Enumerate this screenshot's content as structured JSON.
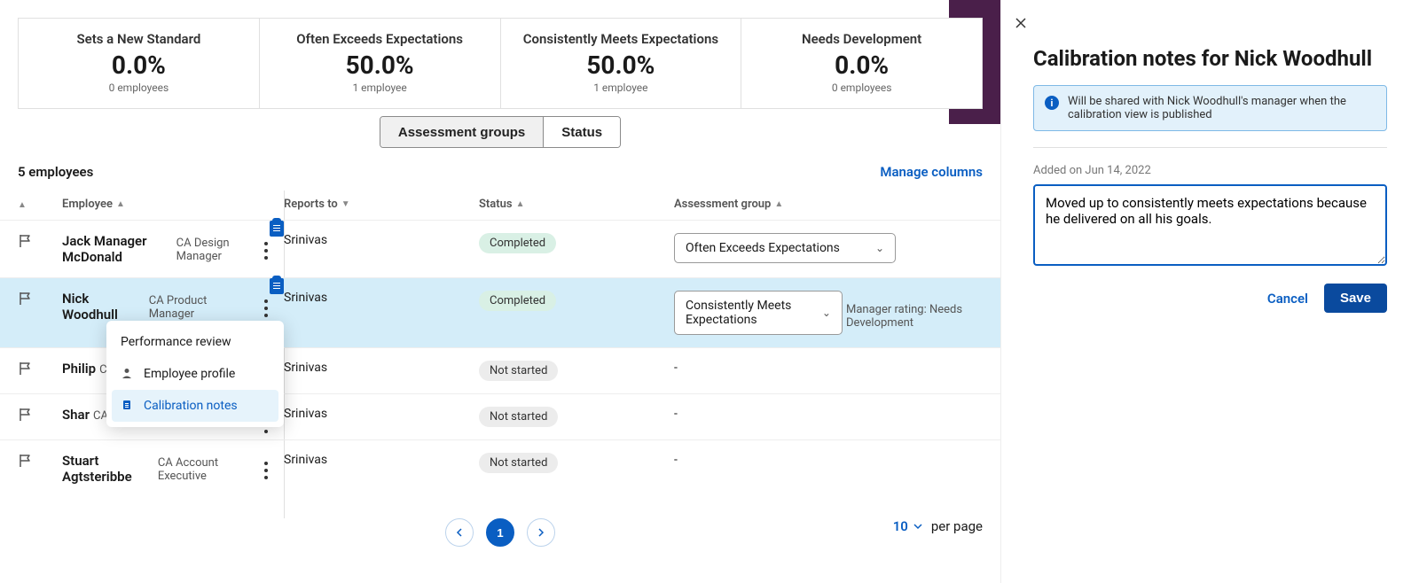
{
  "summary": [
    {
      "title": "Sets a New Standard",
      "pct": "0.0%",
      "count": "0 employees"
    },
    {
      "title": "Often Exceeds Expectations",
      "pct": "50.0%",
      "count": "1 employee"
    },
    {
      "title": "Consistently Meets Expectations",
      "pct": "50.0%",
      "count": "1 employee"
    },
    {
      "title": "Needs Development",
      "pct": "0.0%",
      "count": "0 employees"
    }
  ],
  "tabs": {
    "assessment": "Assessment groups",
    "status": "Status"
  },
  "emp_count": "5 employees",
  "manage_columns": "Manage columns",
  "columns": {
    "employee": "Employee",
    "reports_to": "Reports to",
    "status": "Status",
    "group": "Assessment group"
  },
  "rows": [
    {
      "name": "Jack Manager McDonald",
      "role": "CA Design Manager",
      "reports_to": "Srinivas",
      "status_label": "Completed",
      "status_class": "status-completed",
      "group": "Often Exceeds Expectations",
      "has_clip": true,
      "highlight": false,
      "mgr_note": "",
      "dash": false
    },
    {
      "name": "Nick Woodhull",
      "role": "CA Product Manager",
      "reports_to": "Srinivas",
      "status_label": "Completed",
      "status_class": "status-completed",
      "group": "Consistently Meets Expectations",
      "has_clip": true,
      "highlight": true,
      "mgr_note": "Manager rating: Needs Development",
      "dash": false
    },
    {
      "name": "Philip",
      "role": "CA P",
      "reports_to": "Srinivas",
      "status_label": "Not started",
      "status_class": "status-notstarted",
      "group": "-",
      "has_clip": false,
      "highlight": false,
      "mgr_note": "",
      "dash": true
    },
    {
      "name": "Shar",
      "role": "CA Product Person",
      "reports_to": "Srinivas",
      "status_label": "Not started",
      "status_class": "status-notstarted",
      "group": "-",
      "has_clip": false,
      "highlight": false,
      "mgr_note": "",
      "dash": true
    },
    {
      "name": "Stuart Agtsteribbe",
      "role": "CA Account Executive",
      "reports_to": "Srinivas",
      "status_label": "Not started",
      "status_class": "status-notstarted",
      "group": "-",
      "has_clip": false,
      "highlight": false,
      "mgr_note": "",
      "dash": true
    }
  ],
  "context_menu": {
    "performance_review": "Performance review",
    "employee_profile": "Employee profile",
    "calibration_notes": "Calibration notes"
  },
  "pager": {
    "current": "1",
    "per_value": "10",
    "per_label": "per page"
  },
  "panel": {
    "title": "Calibration notes for Nick Woodhull",
    "info": "Will be shared with Nick Woodhull's manager when the calibration view is published",
    "added_on": "Added on Jun 14, 2022",
    "note": "Moved up to consistently meets expectations because he delivered on all his goals.",
    "cancel": "Cancel",
    "save": "Save"
  },
  "colors": {
    "link": "#0a5ec2",
    "primary": "#0a4a9e",
    "highlight_row": "#d4edf9",
    "completed": "#d9f0e5",
    "notstarted": "#ececec",
    "purple": "#4a1f4a"
  }
}
